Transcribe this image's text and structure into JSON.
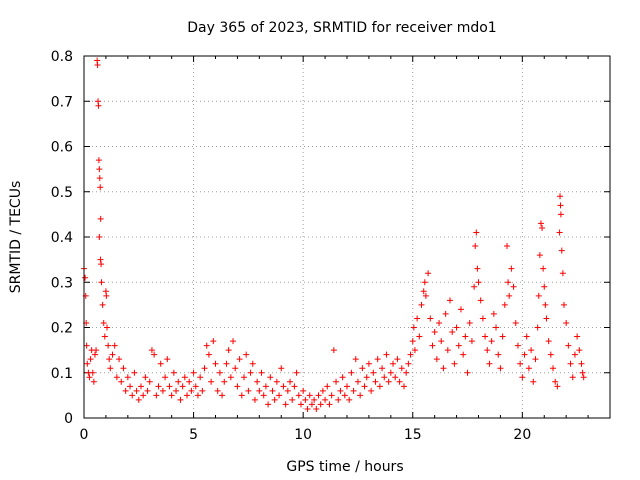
{
  "chart_data": {
    "type": "scatter",
    "title": "Day 365 of 2023, SRMTID for receiver mdo1",
    "xlabel": "GPS time / hours",
    "ylabel": "SRMTID / TECUs",
    "xlim": [
      0,
      24
    ],
    "ylim": [
      0,
      0.8
    ],
    "x_ticks": [
      "0",
      "5",
      "10",
      "15",
      "20"
    ],
    "y_ticks": [
      "0",
      "0.1",
      "0.2",
      "0.3",
      "0.4",
      "0.5",
      "0.6",
      "0.7",
      "0.8"
    ],
    "grid": true,
    "marker": "plus",
    "series": [
      {
        "name": "SRMTID mdo1",
        "color": "#ff0000",
        "points": [
          [
            0.0,
            0.33
          ],
          [
            0.05,
            0.31
          ],
          [
            0.08,
            0.27
          ],
          [
            0.1,
            0.21
          ],
          [
            0.12,
            0.16
          ],
          [
            0.15,
            0.12
          ],
          [
            0.2,
            0.1
          ],
          [
            0.25,
            0.09
          ],
          [
            0.3,
            0.13
          ],
          [
            0.35,
            0.15
          ],
          [
            0.4,
            0.1
          ],
          [
            0.45,
            0.08
          ],
          [
            0.5,
            0.14
          ],
          [
            0.55,
            0.15
          ],
          [
            0.6,
            0.79
          ],
          [
            0.62,
            0.78
          ],
          [
            0.64,
            0.7
          ],
          [
            0.66,
            0.69
          ],
          [
            0.68,
            0.57
          ],
          [
            0.7,
            0.55
          ],
          [
            0.72,
            0.53
          ],
          [
            0.74,
            0.51
          ],
          [
            0.76,
            0.44
          ],
          [
            0.7,
            0.4
          ],
          [
            0.75,
            0.35
          ],
          [
            0.78,
            0.34
          ],
          [
            0.8,
            0.3
          ],
          [
            0.85,
            0.25
          ],
          [
            0.9,
            0.21
          ],
          [
            0.95,
            0.18
          ],
          [
            1.0,
            0.28
          ],
          [
            1.02,
            0.27
          ],
          [
            1.05,
            0.2
          ],
          [
            1.1,
            0.16
          ],
          [
            1.15,
            0.13
          ],
          [
            1.2,
            0.11
          ],
          [
            1.3,
            0.14
          ],
          [
            1.4,
            0.16
          ],
          [
            1.5,
            0.09
          ],
          [
            1.6,
            0.13
          ],
          [
            1.7,
            0.08
          ],
          [
            1.8,
            0.11
          ],
          [
            1.9,
            0.06
          ],
          [
            2.0,
            0.09
          ],
          [
            2.1,
            0.07
          ],
          [
            2.2,
            0.05
          ],
          [
            2.3,
            0.1
          ],
          [
            2.4,
            0.06
          ],
          [
            2.5,
            0.04
          ],
          [
            2.6,
            0.07
          ],
          [
            2.7,
            0.05
          ],
          [
            2.8,
            0.09
          ],
          [
            2.9,
            0.06
          ],
          [
            3.0,
            0.08
          ],
          [
            3.1,
            0.15
          ],
          [
            3.2,
            0.14
          ],
          [
            3.3,
            0.05
          ],
          [
            3.4,
            0.07
          ],
          [
            3.5,
            0.12
          ],
          [
            3.6,
            0.06
          ],
          [
            3.7,
            0.09
          ],
          [
            3.8,
            0.13
          ],
          [
            3.9,
            0.07
          ],
          [
            4.0,
            0.05
          ],
          [
            4.1,
            0.1
          ],
          [
            4.2,
            0.06
          ],
          [
            4.3,
            0.08
          ],
          [
            4.4,
            0.04
          ],
          [
            4.5,
            0.07
          ],
          [
            4.6,
            0.09
          ],
          [
            4.7,
            0.05
          ],
          [
            4.8,
            0.08
          ],
          [
            4.9,
            0.06
          ],
          [
            5.0,
            0.1
          ],
          [
            5.1,
            0.07
          ],
          [
            5.2,
            0.05
          ],
          [
            5.3,
            0.09
          ],
          [
            5.4,
            0.06
          ],
          [
            5.5,
            0.11
          ],
          [
            5.6,
            0.16
          ],
          [
            5.7,
            0.14
          ],
          [
            5.8,
            0.08
          ],
          [
            5.9,
            0.17
          ],
          [
            6.0,
            0.12
          ],
          [
            6.1,
            0.06
          ],
          [
            6.2,
            0.1
          ],
          [
            6.3,
            0.05
          ],
          [
            6.4,
            0.08
          ],
          [
            6.5,
            0.12
          ],
          [
            6.6,
            0.15
          ],
          [
            6.7,
            0.09
          ],
          [
            6.8,
            0.17
          ],
          [
            6.9,
            0.11
          ],
          [
            7.0,
            0.07
          ],
          [
            7.1,
            0.13
          ],
          [
            7.2,
            0.05
          ],
          [
            7.3,
            0.09
          ],
          [
            7.4,
            0.14
          ],
          [
            7.5,
            0.06
          ],
          [
            7.6,
            0.1
          ],
          [
            7.7,
            0.12
          ],
          [
            7.8,
            0.04
          ],
          [
            7.9,
            0.08
          ],
          [
            8.0,
            0.06
          ],
          [
            8.1,
            0.1
          ],
          [
            8.2,
            0.05
          ],
          [
            8.3,
            0.07
          ],
          [
            8.4,
            0.03
          ],
          [
            8.5,
            0.09
          ],
          [
            8.6,
            0.06
          ],
          [
            8.7,
            0.04
          ],
          [
            8.8,
            0.08
          ],
          [
            8.9,
            0.05
          ],
          [
            9.0,
            0.11
          ],
          [
            9.1,
            0.07
          ],
          [
            9.2,
            0.03
          ],
          [
            9.3,
            0.06
          ],
          [
            9.4,
            0.08
          ],
          [
            9.5,
            0.04
          ],
          [
            9.6,
            0.07
          ],
          [
            9.7,
            0.1
          ],
          [
            9.8,
            0.05
          ],
          [
            9.9,
            0.03
          ],
          [
            10.0,
            0.06
          ],
          [
            10.1,
            0.04
          ],
          [
            10.2,
            0.02
          ],
          [
            10.3,
            0.05
          ],
          [
            10.4,
            0.03
          ],
          [
            10.5,
            0.04
          ],
          [
            10.6,
            0.02
          ],
          [
            10.7,
            0.05
          ],
          [
            10.8,
            0.03
          ],
          [
            10.9,
            0.06
          ],
          [
            11.0,
            0.04
          ],
          [
            11.1,
            0.07
          ],
          [
            11.2,
            0.03
          ],
          [
            11.3,
            0.05
          ],
          [
            11.4,
            0.15
          ],
          [
            11.5,
            0.08
          ],
          [
            11.6,
            0.04
          ],
          [
            11.7,
            0.06
          ],
          [
            11.8,
            0.09
          ],
          [
            11.9,
            0.05
          ],
          [
            12.0,
            0.07
          ],
          [
            12.1,
            0.04
          ],
          [
            12.2,
            0.1
          ],
          [
            12.3,
            0.06
          ],
          [
            12.4,
            0.13
          ],
          [
            12.5,
            0.08
          ],
          [
            12.6,
            0.05
          ],
          [
            12.7,
            0.11
          ],
          [
            12.8,
            0.07
          ],
          [
            12.9,
            0.09
          ],
          [
            13.0,
            0.12
          ],
          [
            13.1,
            0.06
          ],
          [
            13.2,
            0.1
          ],
          [
            13.3,
            0.08
          ],
          [
            13.4,
            0.13
          ],
          [
            13.5,
            0.07
          ],
          [
            13.6,
            0.11
          ],
          [
            13.7,
            0.09
          ],
          [
            13.8,
            0.14
          ],
          [
            13.9,
            0.08
          ],
          [
            14.0,
            0.1
          ],
          [
            14.1,
            0.12
          ],
          [
            14.2,
            0.09
          ],
          [
            14.3,
            0.13
          ],
          [
            14.4,
            0.08
          ],
          [
            14.5,
            0.11
          ],
          [
            14.6,
            0.07
          ],
          [
            14.7,
            0.1
          ],
          [
            14.8,
            0.12
          ],
          [
            14.9,
            0.14
          ],
          [
            15.0,
            0.17
          ],
          [
            15.05,
            0.2
          ],
          [
            15.1,
            0.15
          ],
          [
            15.2,
            0.22
          ],
          [
            15.3,
            0.18
          ],
          [
            15.4,
            0.25
          ],
          [
            15.5,
            0.28
          ],
          [
            15.55,
            0.3
          ],
          [
            15.6,
            0.27
          ],
          [
            15.7,
            0.32
          ],
          [
            15.8,
            0.22
          ],
          [
            15.9,
            0.16
          ],
          [
            16.0,
            0.19
          ],
          [
            16.1,
            0.13
          ],
          [
            16.2,
            0.21
          ],
          [
            16.3,
            0.17
          ],
          [
            16.4,
            0.11
          ],
          [
            16.5,
            0.23
          ],
          [
            16.6,
            0.15
          ],
          [
            16.7,
            0.26
          ],
          [
            16.8,
            0.19
          ],
          [
            16.9,
            0.12
          ],
          [
            17.0,
            0.2
          ],
          [
            17.1,
            0.16
          ],
          [
            17.2,
            0.24
          ],
          [
            17.3,
            0.14
          ],
          [
            17.4,
            0.18
          ],
          [
            17.5,
            0.1
          ],
          [
            17.6,
            0.21
          ],
          [
            17.7,
            0.17
          ],
          [
            17.8,
            0.29
          ],
          [
            17.85,
            0.38
          ],
          [
            17.9,
            0.41
          ],
          [
            17.95,
            0.33
          ],
          [
            18.0,
            0.3
          ],
          [
            18.1,
            0.26
          ],
          [
            18.2,
            0.22
          ],
          [
            18.3,
            0.18
          ],
          [
            18.4,
            0.15
          ],
          [
            18.5,
            0.12
          ],
          [
            18.6,
            0.17
          ],
          [
            18.7,
            0.23
          ],
          [
            18.8,
            0.2
          ],
          [
            18.9,
            0.14
          ],
          [
            19.0,
            0.11
          ],
          [
            19.1,
            0.18
          ],
          [
            19.2,
            0.25
          ],
          [
            19.3,
            0.38
          ],
          [
            19.35,
            0.3
          ],
          [
            19.4,
            0.27
          ],
          [
            19.5,
            0.33
          ],
          [
            19.6,
            0.29
          ],
          [
            19.7,
            0.21
          ],
          [
            19.8,
            0.16
          ],
          [
            19.9,
            0.12
          ],
          [
            20.0,
            0.09
          ],
          [
            20.1,
            0.14
          ],
          [
            20.2,
            0.18
          ],
          [
            20.3,
            0.11
          ],
          [
            20.4,
            0.15
          ],
          [
            20.5,
            0.08
          ],
          [
            20.6,
            0.13
          ],
          [
            20.7,
            0.2
          ],
          [
            20.75,
            0.27
          ],
          [
            20.8,
            0.36
          ],
          [
            20.85,
            0.43
          ],
          [
            20.9,
            0.42
          ],
          [
            20.95,
            0.33
          ],
          [
            21.0,
            0.29
          ],
          [
            21.05,
            0.25
          ],
          [
            21.1,
            0.22
          ],
          [
            21.2,
            0.17
          ],
          [
            21.3,
            0.14
          ],
          [
            21.4,
            0.11
          ],
          [
            21.5,
            0.08
          ],
          [
            21.6,
            0.07
          ],
          [
            21.7,
            0.41
          ],
          [
            21.72,
            0.49
          ],
          [
            21.74,
            0.47
          ],
          [
            21.76,
            0.45
          ],
          [
            21.8,
            0.37
          ],
          [
            21.85,
            0.32
          ],
          [
            21.9,
            0.25
          ],
          [
            22.0,
            0.21
          ],
          [
            22.1,
            0.16
          ],
          [
            22.2,
            0.12
          ],
          [
            22.3,
            0.09
          ],
          [
            22.4,
            0.14
          ],
          [
            22.5,
            0.18
          ],
          [
            22.6,
            0.15
          ],
          [
            22.7,
            0.12
          ],
          [
            22.75,
            0.1
          ],
          [
            22.8,
            0.09
          ]
        ]
      }
    ]
  }
}
